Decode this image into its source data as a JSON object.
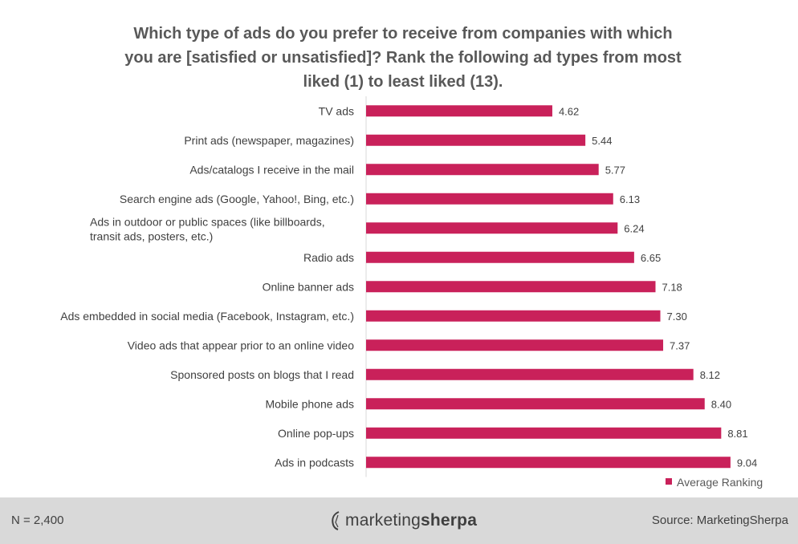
{
  "chart_data": {
    "type": "bar",
    "orientation": "horizontal",
    "title_lines": [
      "Which type of ads do you prefer to receive from companies with which",
      "you are [satisfied  or unsatisfied]?  Rank the following ad types from most",
      "liked (1) to least liked (13)."
    ],
    "categories": [
      [
        "TV ads"
      ],
      [
        "Print ads (newspaper, magazines)"
      ],
      [
        "Ads/catalogs I receive in the mail"
      ],
      [
        "Search engine ads (Google, Yahoo!, Bing, etc.)"
      ],
      [
        "Ads in outdoor or public spaces (like billboards,",
        "transit ads, posters, etc.)"
      ],
      [
        "Radio ads"
      ],
      [
        "Online banner ads"
      ],
      [
        "Ads embedded in social media (Facebook, Instagram, etc.)"
      ],
      [
        "Video ads that appear prior to an online video"
      ],
      [
        "Sponsored posts on blogs that I read"
      ],
      [
        "Mobile phone ads"
      ],
      [
        "Online pop-ups"
      ],
      [
        "Ads in podcasts"
      ]
    ],
    "series": [
      {
        "name": "Average Ranking",
        "color": "#c9215a",
        "values": [
          4.62,
          5.44,
          5.77,
          6.13,
          6.24,
          6.65,
          7.18,
          7.3,
          7.37,
          8.12,
          8.4,
          8.81,
          9.04
        ]
      }
    ],
    "value_labels": [
      "4.62",
      "5.44",
      "5.77",
      "6.13",
      "6.24",
      "6.65",
      "7.18",
      "7.30",
      "7.37",
      "8.12",
      "8.40",
      "8.81",
      "9.04"
    ],
    "xlim": [
      0,
      9.6
    ],
    "legend_position": "bottom-right",
    "grid": false
  },
  "footer": {
    "sample_size": "N = 2,400",
    "logo_text_light": "marketing",
    "logo_text_bold": "sherpa",
    "source": "Source: MarketingSherpa"
  }
}
